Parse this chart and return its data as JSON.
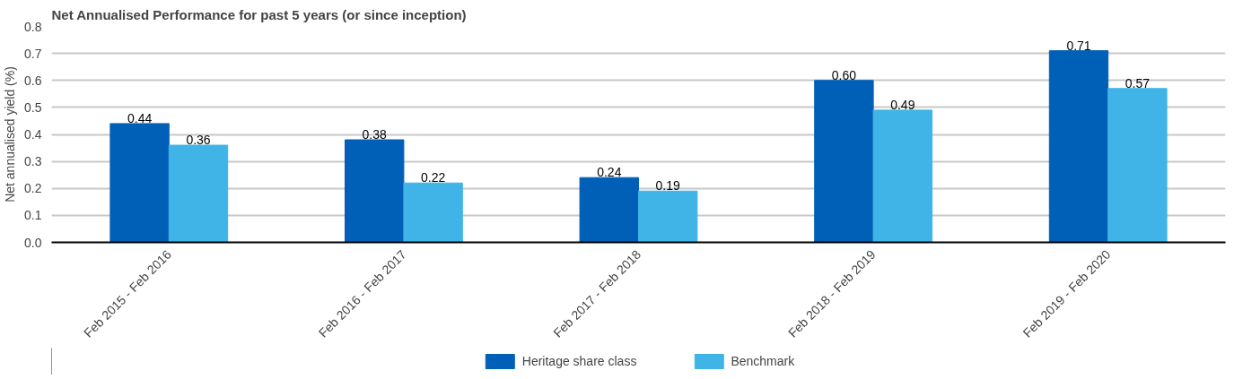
{
  "chart_data": {
    "type": "bar",
    "title": "Net Annualised Performance for past 5 years (or since inception)",
    "ylabel": "Net annualised yield (%)",
    "categories": [
      "Feb 2015 - Feb 2016",
      "Feb 2016 - Feb 2017",
      "Feb 2017 - Feb 2018",
      "Feb 2018 - Feb 2019",
      "Feb 2019 - Feb 2020"
    ],
    "series": [
      {
        "name": "Heritage share class",
        "color": "#0060b8",
        "values": [
          0.44,
          0.38,
          0.24,
          0.6,
          0.71
        ],
        "value_labels": [
          "0.44",
          "0.38",
          "0.24",
          "0.60",
          "0.71"
        ]
      },
      {
        "name": "Benchmark",
        "color": "#40b4e6",
        "values": [
          0.36,
          0.22,
          0.19,
          0.49,
          0.57
        ],
        "value_labels": [
          "0.36",
          "0.22",
          "0.19",
          "0.49",
          "0.57"
        ]
      }
    ],
    "ylim": [
      0,
      0.8
    ],
    "yticks": [
      {
        "value": 0,
        "label": "0.0"
      },
      {
        "value": 0.1,
        "label": "0.1"
      },
      {
        "value": 0.2,
        "label": "0.2"
      },
      {
        "value": 0.3,
        "label": "0.3"
      },
      {
        "value": 0.4,
        "label": "0.4"
      },
      {
        "value": 0.5,
        "label": "0.5"
      },
      {
        "value": 0.6,
        "label": "0.6"
      },
      {
        "value": 0.7,
        "label": "0.7"
      },
      {
        "value": 0.8,
        "label": "0.8"
      }
    ],
    "grid": "y",
    "legend": "bottom"
  }
}
